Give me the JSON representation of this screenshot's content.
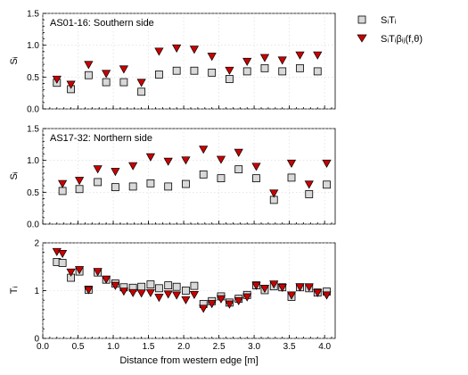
{
  "chart_data": {
    "type": "scatter",
    "xlabel": "Distance from western edge [m]",
    "xlim": [
      0,
      4.15
    ],
    "xticks": [
      "0.0",
      "0.5",
      "1.0",
      "1.5",
      "2.0",
      "2.5",
      "3.0",
      "3.5",
      "4.0"
    ],
    "legend": {
      "placement": "right, outside plot area",
      "entries": [
        {
          "label": "SᵢTᵢ",
          "marker": "square",
          "color": "#d9d9d9"
        },
        {
          "label": "SᵢTᵢβᵢⱼ(f,θ)",
          "marker": "triangle-down",
          "color": "#cc0000"
        }
      ]
    },
    "panels": [
      {
        "label": "AS01-16: Southern side",
        "ylabel": "Sᵢ",
        "ylim": [
          0,
          1.5
        ],
        "yticks": [
          "0.0",
          "0.5",
          "1.0",
          "1.5"
        ],
        "series": [
          {
            "key": "ST",
            "marker": "square",
            "x": [
              0.2,
              0.4,
              0.65,
              0.9,
              1.15,
              1.4,
              1.65,
              1.9,
              2.15,
              2.4,
              2.65,
              2.9,
              3.15,
              3.4,
              3.65,
              3.9
            ],
            "y": [
              0.41,
              0.31,
              0.53,
              0.42,
              0.42,
              0.27,
              0.54,
              0.6,
              0.6,
              0.57,
              0.47,
              0.59,
              0.64,
              0.59,
              0.64,
              0.59
            ]
          },
          {
            "key": "STB",
            "marker": "triangle-down",
            "x": [
              0.2,
              0.4,
              0.65,
              0.9,
              1.15,
              1.4,
              1.65,
              1.9,
              2.15,
              2.4,
              2.65,
              2.9,
              3.15,
              3.4,
              3.65,
              3.9
            ],
            "y": [
              0.46,
              0.38,
              0.69,
              0.55,
              0.62,
              0.41,
              0.9,
              0.95,
              0.93,
              0.82,
              0.6,
              0.74,
              0.8,
              0.76,
              0.84,
              0.84
            ]
          }
        ]
      },
      {
        "label": "AS17-32: Northern side",
        "ylabel": "Sᵢ",
        "ylim": [
          0,
          1.5
        ],
        "yticks": [
          "0.0",
          "0.5",
          "1.0",
          "1.5"
        ],
        "series": [
          {
            "key": "ST",
            "marker": "square",
            "x": [
              0.28,
              0.52,
              0.78,
              1.03,
              1.28,
              1.53,
              1.78,
              2.03,
              2.28,
              2.53,
              2.78,
              3.03,
              3.28,
              3.53,
              3.78,
              4.03
            ],
            "y": [
              0.52,
              0.55,
              0.66,
              0.58,
              0.59,
              0.64,
              0.59,
              0.63,
              0.78,
              0.72,
              0.86,
              0.72,
              0.38,
              0.73,
              0.47,
              0.62
            ]
          },
          {
            "key": "STB",
            "marker": "triangle-down",
            "x": [
              0.28,
              0.52,
              0.78,
              1.03,
              1.28,
              1.53,
              1.78,
              2.03,
              2.28,
              2.53,
              2.78,
              3.03,
              3.28,
              3.53,
              3.78,
              4.03
            ],
            "y": [
              0.63,
              0.68,
              0.86,
              0.82,
              0.91,
              1.05,
              0.98,
              1.0,
              1.17,
              1.01,
              1.12,
              0.9,
              0.48,
              0.95,
              0.62,
              0.95
            ]
          }
        ]
      },
      {
        "label": "",
        "ylabel": "Tᵢ",
        "ylim": [
          0,
          2
        ],
        "yticks": [
          "0",
          "1",
          "2"
        ],
        "series": [
          {
            "key": "ST",
            "marker": "square",
            "x": [
              0.2,
              0.28,
              0.4,
              0.52,
              0.65,
              0.78,
              0.9,
              1.03,
              1.15,
              1.28,
              1.4,
              1.53,
              1.65,
              1.78,
              1.9,
              2.03,
              2.15,
              2.28,
              2.4,
              2.53,
              2.65,
              2.78,
              2.9,
              3.03,
              3.15,
              3.28,
              3.4,
              3.53,
              3.65,
              3.78,
              3.9,
              4.03
            ],
            "y": [
              1.6,
              1.58,
              1.27,
              1.4,
              1.02,
              1.38,
              1.23,
              1.15,
              1.07,
              1.06,
              1.08,
              1.13,
              1.05,
              1.11,
              1.08,
              1.0,
              1.1,
              0.72,
              0.78,
              0.88,
              0.75,
              0.83,
              0.91,
              1.11,
              1.01,
              1.09,
              1.07,
              0.87,
              1.07,
              1.05,
              0.96,
              0.98
            ]
          },
          {
            "key": "STB",
            "marker": "triangle-down",
            "x": [
              0.2,
              0.28,
              0.4,
              0.52,
              0.65,
              0.78,
              0.9,
              1.03,
              1.15,
              1.28,
              1.4,
              1.53,
              1.65,
              1.78,
              1.9,
              2.03,
              2.15,
              2.28,
              2.4,
              2.53,
              2.65,
              2.78,
              2.9,
              3.03,
              3.15,
              3.28,
              3.4,
              3.53,
              3.65,
              3.78,
              3.9,
              4.03
            ],
            "y": [
              1.81,
              1.77,
              1.38,
              1.43,
              1.01,
              1.39,
              1.23,
              1.1,
              0.98,
              0.95,
              0.94,
              0.95,
              0.85,
              0.92,
              0.9,
              0.8,
              0.91,
              0.62,
              0.72,
              0.82,
              0.71,
              0.78,
              0.86,
              1.1,
              1.04,
              1.13,
              1.06,
              0.9,
              1.07,
              1.07,
              0.95,
              0.9
            ]
          }
        ]
      }
    ]
  }
}
